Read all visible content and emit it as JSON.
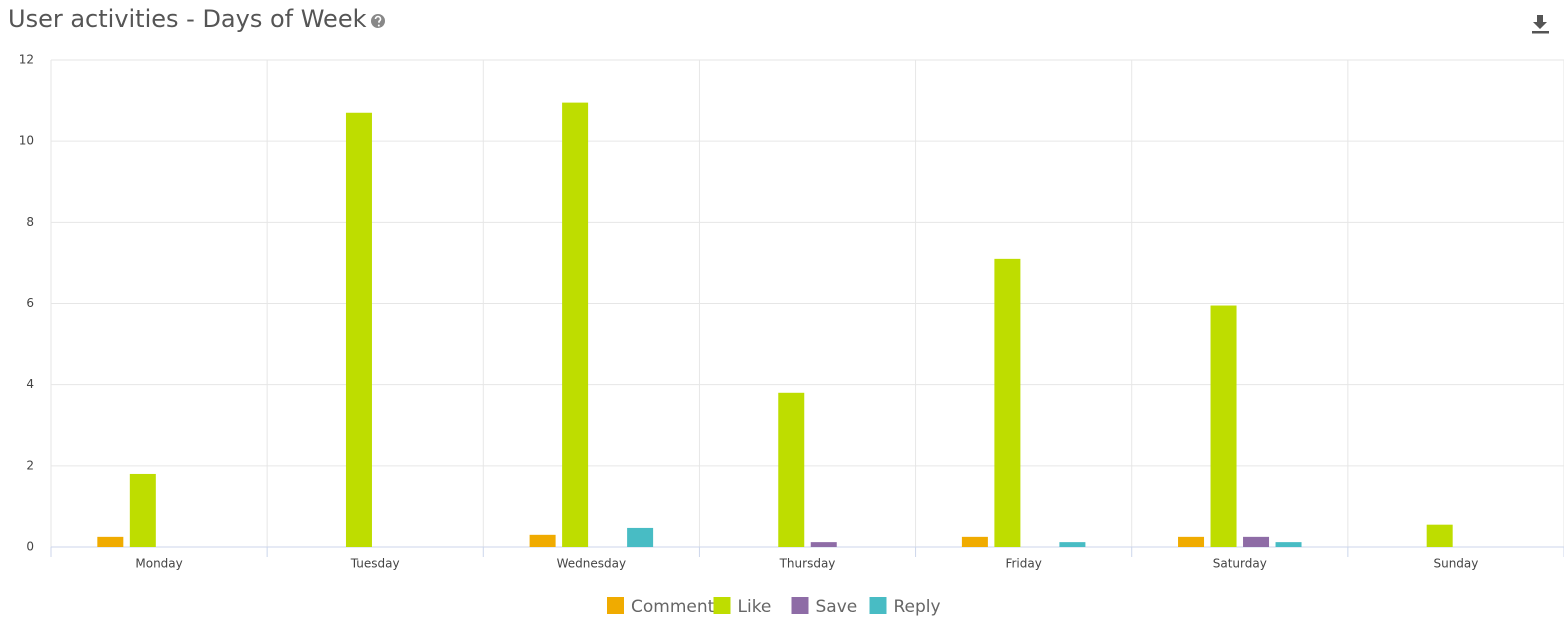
{
  "chart_data": {
    "type": "bar",
    "title": "User activities - Days of Week",
    "categories": [
      "Monday",
      "Tuesday",
      "Wednesday",
      "Thursday",
      "Friday",
      "Saturday",
      "Sunday"
    ],
    "series": [
      {
        "name": "Comment",
        "color": "#f0ab00",
        "values": [
          0.25,
          null,
          0.3,
          null,
          0.25,
          0.25,
          null
        ]
      },
      {
        "name": "Like",
        "color": "#bedd00",
        "values": [
          1.8,
          10.7,
          10.95,
          3.8,
          7.1,
          5.95,
          0.55
        ]
      },
      {
        "name": "Save",
        "color": "#8e6ca6",
        "values": [
          null,
          null,
          null,
          0.12,
          null,
          0.25,
          null
        ]
      },
      {
        "name": "Reply",
        "color": "#48bcc4",
        "values": [
          null,
          null,
          0.47,
          null,
          0.12,
          0.12,
          null
        ]
      }
    ],
    "ylim": [
      0,
      12
    ],
    "yticks": [
      0,
      2,
      4,
      6,
      8,
      10,
      12
    ],
    "grid": true
  }
}
